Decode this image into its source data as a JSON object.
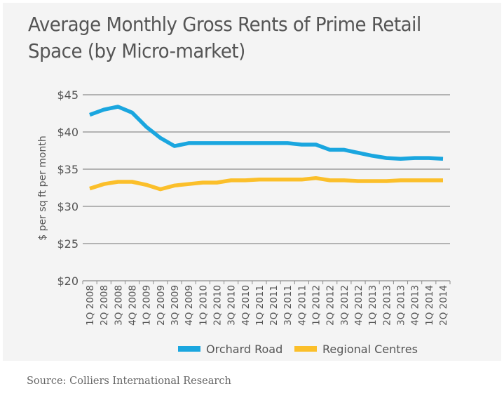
{
  "title": "Average Monthly Gross Rents of Prime Retail Space (by Micro-market)",
  "source": "Source: Colliers International Research",
  "colors": {
    "orchard_road": "#1aa6df",
    "regional_centres": "#fbbf2a",
    "gridline": "#8c8c8c",
    "text": "#555555",
    "background": "#f4f4f4"
  },
  "chart_data": {
    "type": "line",
    "title": "Average Monthly Gross Rents of Prime Retail Space (by Micro-market)",
    "xlabel": "",
    "ylabel": "$ per sq ft per month",
    "ylim": [
      20,
      45
    ],
    "yticks": [
      20,
      25,
      30,
      35,
      40,
      45
    ],
    "ytick_labels": [
      "$20",
      "$25",
      "$30",
      "$35",
      "$40",
      "$45"
    ],
    "grid": true,
    "legend_position": "bottom",
    "categories": [
      "1Q 2008",
      "2Q 2008",
      "3Q 2008",
      "4Q 2008",
      "1Q 2009",
      "2Q 2009",
      "3Q 2009",
      "4Q 2009",
      "1Q 2010",
      "2Q 2010",
      "3Q 2010",
      "4Q 2010",
      "1Q 2011",
      "2Q 2011",
      "3Q 2011",
      "4Q 2011",
      "1Q 2012",
      "2Q 2012",
      "3Q 2012",
      "4Q 2012",
      "1Q 2013",
      "2Q 2013",
      "3Q 2013",
      "4Q 2013",
      "1Q 2014",
      "2Q 2014"
    ],
    "series": [
      {
        "name": "Orchard Road",
        "color": "#1aa6df",
        "values": [
          42.3,
          43.0,
          43.4,
          42.6,
          40.7,
          39.2,
          38.1,
          38.5,
          38.5,
          38.5,
          38.5,
          38.5,
          38.5,
          38.5,
          38.5,
          38.3,
          38.3,
          37.6,
          37.6,
          37.2,
          36.8,
          36.5,
          36.4,
          36.5,
          36.5,
          36.4
        ]
      },
      {
        "name": "Regional Centres",
        "color": "#fbbf2a",
        "values": [
          32.4,
          33.0,
          33.3,
          33.3,
          32.9,
          32.3,
          32.8,
          33.0,
          33.2,
          33.2,
          33.5,
          33.5,
          33.6,
          33.6,
          33.6,
          33.6,
          33.8,
          33.5,
          33.5,
          33.4,
          33.4,
          33.4,
          33.5,
          33.5,
          33.5,
          33.5
        ]
      }
    ]
  }
}
